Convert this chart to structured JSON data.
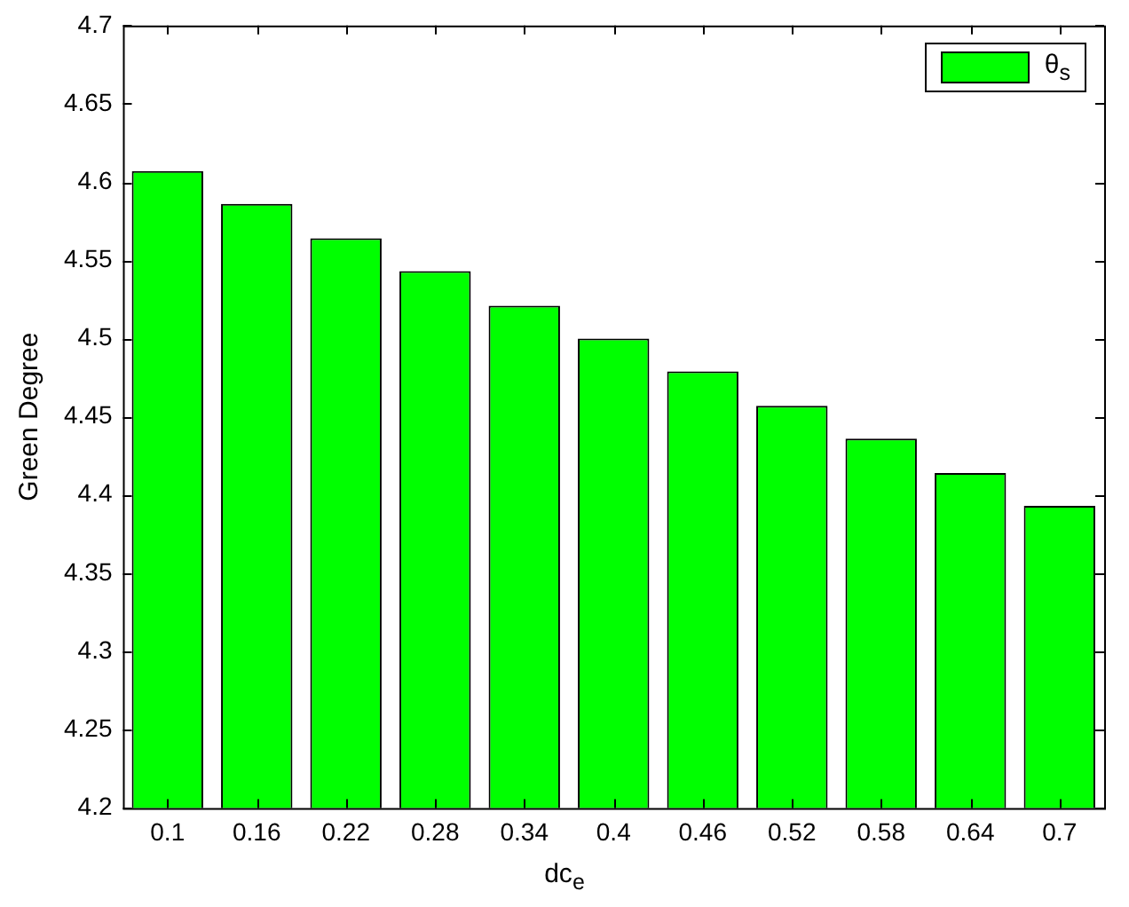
{
  "chart_data": {
    "type": "bar",
    "xlabel": "dc$_{e}$",
    "ylabel": "Green Degree",
    "categories": [
      "0.1",
      "0.16",
      "0.22",
      "0.28",
      "0.34",
      "0.4",
      "0.46",
      "0.52",
      "0.58",
      "0.64",
      "0.7"
    ],
    "series": [
      {
        "name": "θ$_{s}$",
        "color": "#00ff00",
        "values": [
          4.607,
          4.586,
          4.564,
          4.543,
          4.521,
          4.5,
          4.479,
          4.457,
          4.436,
          4.414,
          4.393
        ]
      }
    ],
    "ylim": [
      4.2,
      4.7
    ],
    "yticks": [
      4.2,
      4.25,
      4.3,
      4.35,
      4.4,
      4.45,
      4.5,
      4.55,
      4.6,
      4.65,
      4.7
    ],
    "grid": false,
    "legend": "top right"
  }
}
